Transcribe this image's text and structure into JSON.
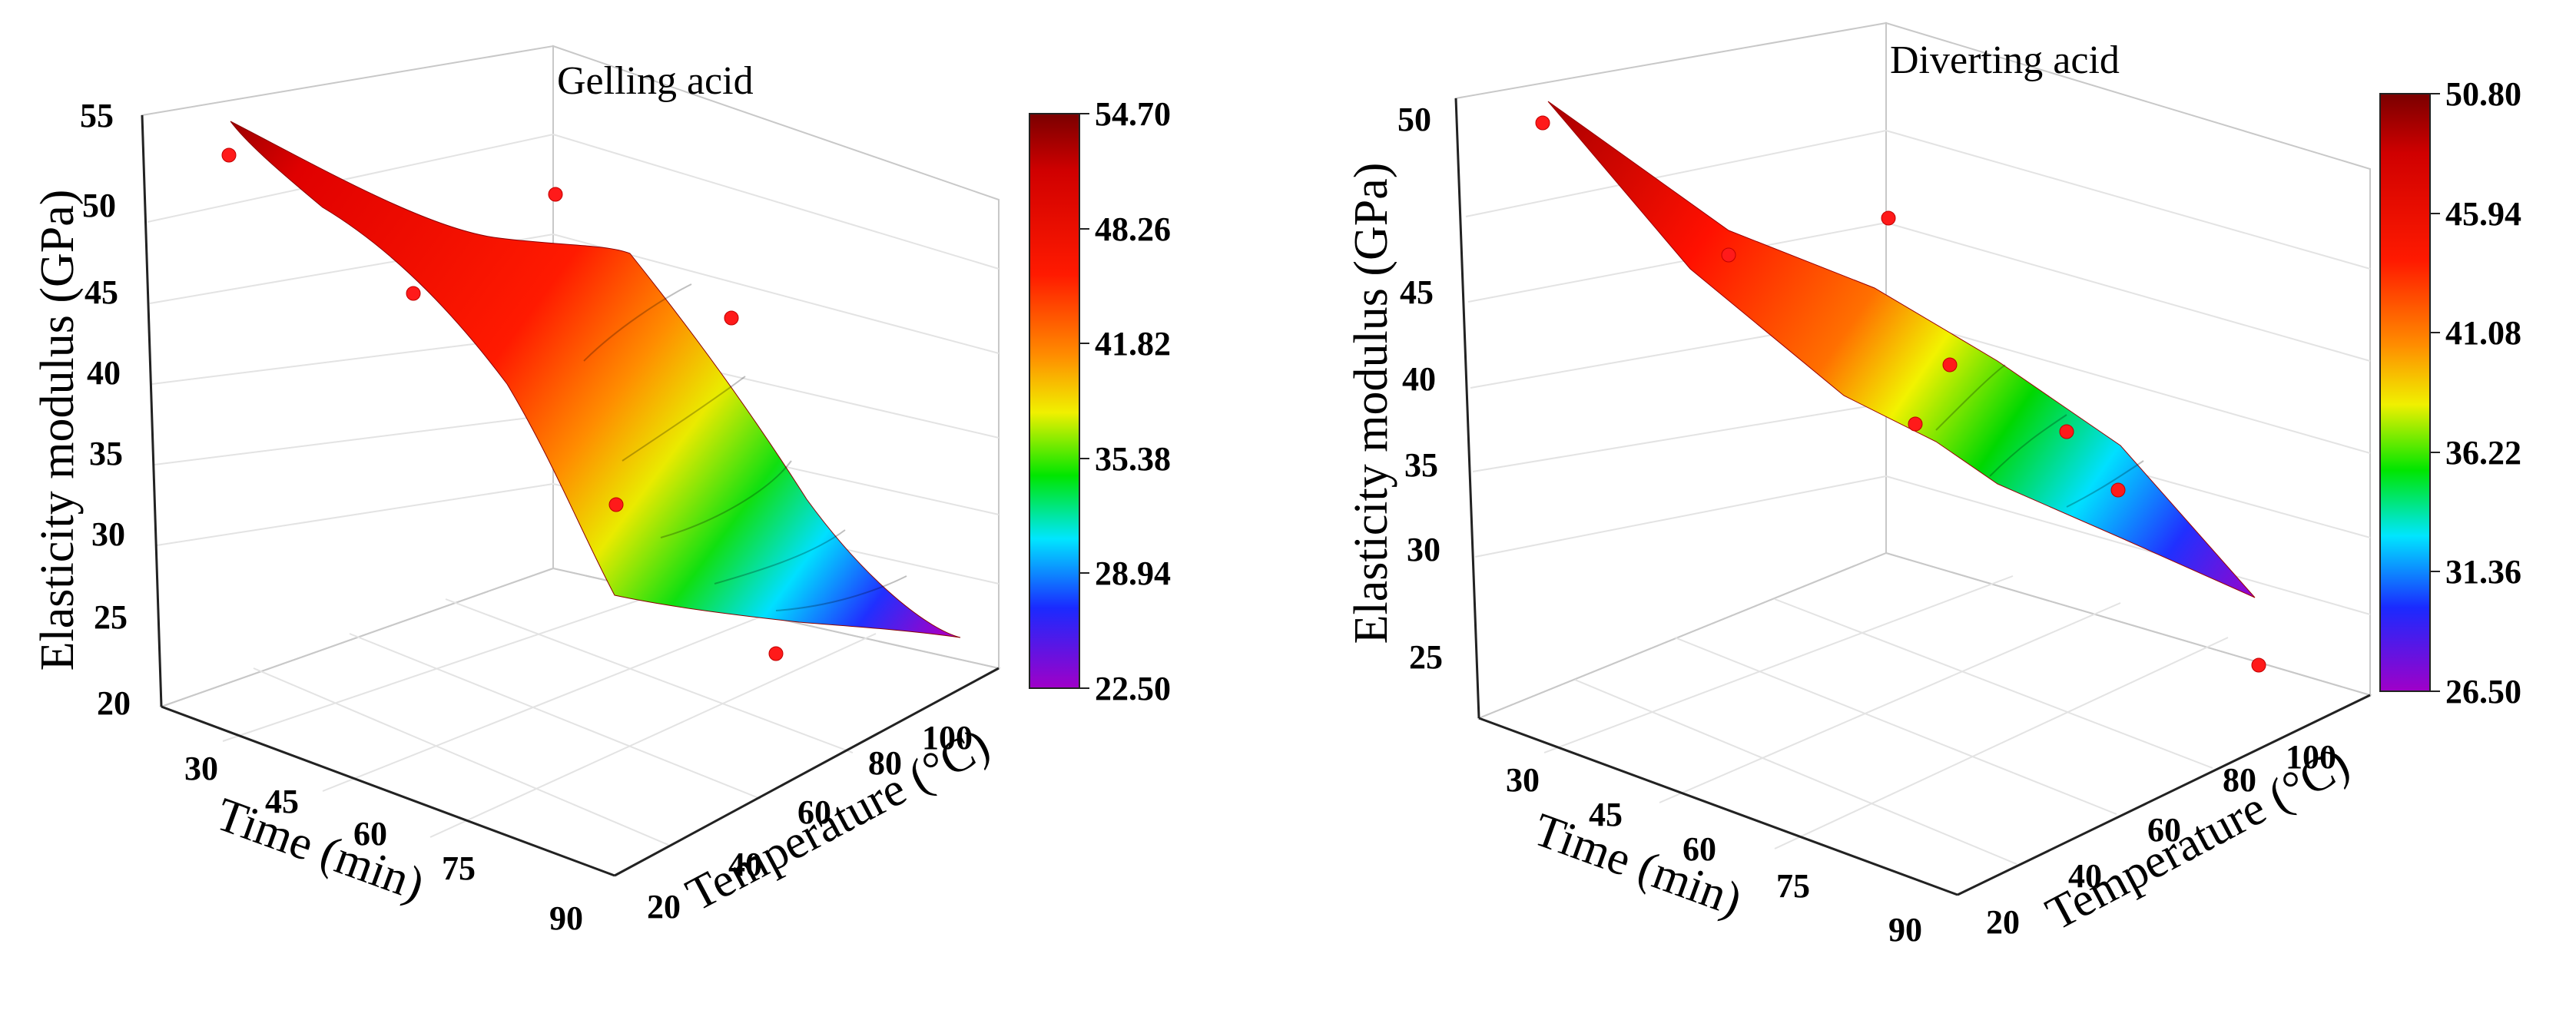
{
  "chart_data": [
    {
      "type": "surface3d",
      "title": "Gelling acid",
      "xlabel": "Time (min)",
      "ylabel": "Temperature (°C)",
      "zlabel": "Elasticity modulus (GPa)",
      "x_ticks": [
        "30",
        "45",
        "60",
        "75",
        "90"
      ],
      "y_ticks": [
        "20",
        "40",
        "60",
        "80",
        "100"
      ],
      "z_ticks": [
        "20",
        "25",
        "30",
        "35",
        "40",
        "45",
        "50",
        "55"
      ],
      "zlim": [
        20,
        55
      ],
      "colorbar": {
        "min": 22.5,
        "max": 54.7,
        "ticks": [
          "54.70",
          "48.26",
          "41.82",
          "35.38",
          "28.94",
          "22.50"
        ]
      },
      "points": [
        {
          "time": 30,
          "temperature": 30,
          "modulus": 52.9
        },
        {
          "time": 45,
          "temperature": 40,
          "modulus": 46.0
        },
        {
          "time": 30,
          "temperature": 90,
          "modulus": 51.0
        },
        {
          "time": 60,
          "temperature": 90,
          "modulus": 45.0
        },
        {
          "time": 75,
          "temperature": 40,
          "modulus": 34.0
        },
        {
          "time": 90,
          "temperature": 40,
          "modulus": 24.5
        }
      ]
    },
    {
      "type": "surface3d",
      "title": "Diverting acid",
      "xlabel": "Time (min)",
      "ylabel": "Temperature (°C)",
      "zlabel": "Elasticity modulus (GPa)",
      "x_ticks": [
        "30",
        "45",
        "60",
        "75",
        "90"
      ],
      "y_ticks": [
        "20",
        "40",
        "60",
        "80",
        "100"
      ],
      "z_ticks": [
        "25",
        "30",
        "35",
        "40",
        "45",
        "50"
      ],
      "zlim": [
        23,
        51
      ],
      "colorbar": {
        "min": 26.5,
        "max": 50.8,
        "ticks": [
          "50.80",
          "45.94",
          "41.08",
          "36.22",
          "31.36",
          "26.50"
        ]
      },
      "points": [
        {
          "time": 30,
          "temperature": 30,
          "modulus": 49.8
        },
        {
          "time": 45,
          "temperature": 40,
          "modulus": 44.0
        },
        {
          "time": 30,
          "temperature": 90,
          "modulus": 45.5
        },
        {
          "time": 60,
          "temperature": 50,
          "modulus": 39.0
        },
        {
          "time": 60,
          "temperature": 30,
          "modulus": 36.0
        },
        {
          "time": 75,
          "temperature": 80,
          "modulus": 36.0
        },
        {
          "time": 75,
          "temperature": 60,
          "modulus": 33.0
        },
        {
          "time": 90,
          "temperature": 40,
          "modulus": 25.0
        }
      ]
    }
  ]
}
